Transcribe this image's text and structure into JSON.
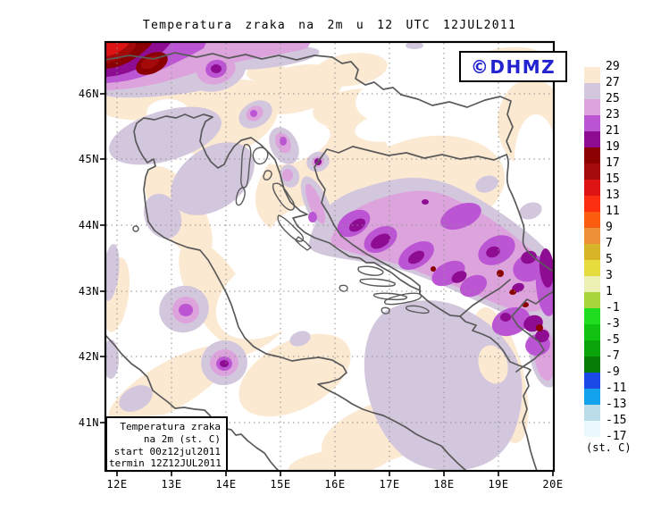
{
  "title": "Temperatura zraka na 2m u 12 UTC 12JUL2011",
  "watermark": {
    "text": "©DHMZ",
    "color": "#2323CF"
  },
  "info_box": {
    "lines": [
      "Temperatura zraka",
      "na 2m (st. C)",
      "start 00z12jul2011",
      "termin 12Z12JUL2011"
    ]
  },
  "axes": {
    "x_ticks": [
      "12E",
      "13E",
      "14E",
      "15E",
      "16E",
      "17E",
      "18E",
      "19E",
      "20E"
    ],
    "y_ticks": [
      "46N",
      "45N",
      "44N",
      "43N",
      "42N",
      "41N"
    ]
  },
  "colorbar": {
    "unit": "(st. C)",
    "tick_labels": [
      "29",
      "27",
      "25",
      "23",
      "21",
      "19",
      "17",
      "15",
      "13",
      "11",
      "9",
      "7",
      "5",
      "3",
      "1",
      "-1",
      "-3",
      "-5",
      "-7",
      "-9",
      "-11",
      "-13",
      "-15",
      "-17"
    ],
    "band_colors": [
      "#FBE9D2",
      "#D3C7DE",
      "#DCA3DC",
      "#BC55D3",
      "#8E0C92",
      "#8B0000",
      "#A50A0A",
      "#DC1414",
      "#FB2E10",
      "#F95D0D",
      "#EE9038",
      "#D8B429",
      "#E6DC3E",
      "#ECF0B2",
      "#A8D53C",
      "#20DD20",
      "#12C212",
      "#0AA50A",
      "#067D06",
      "#1B49E8",
      "#12A3EC",
      "#BBDDEA",
      "#E9F9FC"
    ]
  },
  "chart_data": {
    "type": "heatmap",
    "subtype": "filled-contour temperature map",
    "title": "Temperatura zraka na 2m u 12 UTC 12JUL2011",
    "parameter": "Temperatura zraka na 2m (st. C)",
    "model_start": "start 00z12jul2011",
    "valid_time": "termin 12Z12JUL2011",
    "source_watermark": "©DHMZ",
    "x_axis": {
      "label": "longitude",
      "ticks": [
        "12E",
        "13E",
        "14E",
        "15E",
        "16E",
        "17E",
        "18E",
        "19E",
        "20E"
      ]
    },
    "y_axis": {
      "label": "latitude",
      "ticks": [
        "46N",
        "45N",
        "44N",
        "43N",
        "42N",
        "41N"
      ]
    },
    "unit_label": "(st. C)",
    "contour_levels_c": [
      29,
      27,
      25,
      23,
      21,
      19,
      17,
      15,
      13,
      11,
      9,
      7,
      5,
      3,
      1,
      -1,
      -3,
      -5,
      -7,
      -9,
      -11,
      -13,
      -15,
      -17
    ],
    "level_band_colors": [
      "#FBE9D2",
      "#D3C7DE",
      "#DCA3DC",
      "#BC55D3",
      "#8E0C92",
      "#8B0000",
      "#A50A0A",
      "#DC1414",
      "#FB2E10",
      "#F95D0D",
      "#EE9038",
      "#D8B429",
      "#E6DC3E",
      "#ECF0B2",
      "#A8D53C",
      "#20DD20",
      "#12C212",
      "#0AA50A",
      "#067D06",
      "#1B49E8",
      "#12A3EC",
      "#BBDDEA",
      "#E9F9FC"
    ],
    "grid": true,
    "legend_position": "right",
    "observed_features": [
      "Cold core 13-19 st.C over the Alps in the NW corner near 12E 46.5N",
      "Purple band 19-25 st.C along the Alpine rim and a 19-21 st.C spot near 13.8E 46.3N",
      "Warm (>29 st.C, white) Pannonian plain in the NE and along the mid-Adriatic coast",
      "25-27 st.C over the northern Adriatic sea near Venice/Istria",
      "Diagonal 21-25 st.C band with 19-21 cores and small 15-19 spots over the Dinaric mountains of Bosnia, Montenegro and Serbia (17-20E, 42.5-44.5N)",
      "25-27 st.C pool over the southern Adriatic sea (17-19.5E, 40.5-42.5N)",
      "Small 19-25 st.C spot over the central Apennines near 14.2E 42.3N",
      "27-29 st.C (cream) over the Po valley, the Italian Adriatic coast and northern Bosnia"
    ]
  }
}
